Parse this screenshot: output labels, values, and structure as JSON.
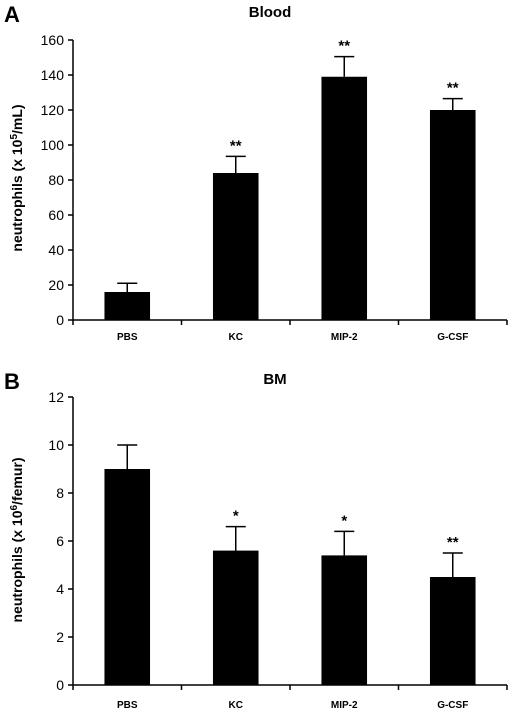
{
  "chart_data": [
    {
      "type": "bar",
      "panel": "A",
      "title": "Blood",
      "ylabel": "neutrophils (x 10",
      "ylabel_sup": "5",
      "ylabel_end": "/mL)",
      "categories": [
        "PBS",
        "KC",
        "MIP-2",
        "G-CSF"
      ],
      "values": [
        16,
        84,
        139,
        120
      ],
      "errors": [
        5,
        9.5,
        11.5,
        6.5
      ],
      "significance": [
        "",
        "**",
        "**",
        "**"
      ],
      "ylim": [
        0,
        160
      ],
      "yticks": [
        0,
        20,
        40,
        60,
        80,
        100,
        120,
        140,
        160
      ],
      "color": "#000000"
    },
    {
      "type": "bar",
      "panel": "B",
      "title": "BM",
      "ylabel": "neutrophils (x 10",
      "ylabel_sup": "6",
      "ylabel_end": "/femur)",
      "categories": [
        "PBS",
        "KC",
        "MIP-2",
        "G-CSF"
      ],
      "values": [
        9.0,
        5.6,
        5.4,
        4.5
      ],
      "errors": [
        1.0,
        1.0,
        1.0,
        1.0
      ],
      "significance": [
        "",
        "*",
        "*",
        "**"
      ],
      "ylim": [
        0,
        12
      ],
      "yticks": [
        0,
        2,
        4,
        6,
        8,
        10,
        12
      ],
      "color": "#000000"
    }
  ]
}
